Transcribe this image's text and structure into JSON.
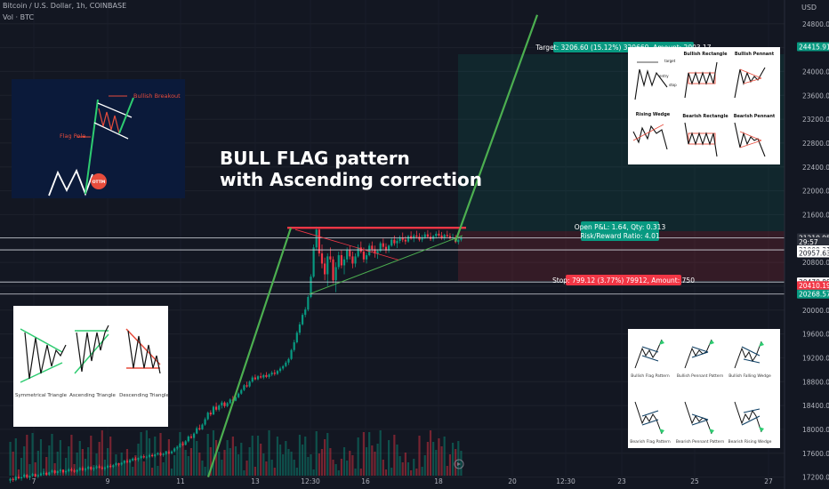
{
  "header": {
    "symbol_line": "Bitcoin / U.S. Dollar, 1h, COINBASE",
    "volume_line": "Vol · BTC",
    "currency": "USD"
  },
  "headline": {
    "line1": "BULL FLAG pattern",
    "line2": "with Ascending correction"
  },
  "trade": {
    "target_label": "Target: 3206.60 (15.12%) 320660, Amount: 2003.17",
    "position_line1": "Open P&L: 1.64, Qty: 0.313",
    "position_line2": "Risk/Reward Ratio: 4.01",
    "stop_label": "Stop: 799.12 (3.77%) 79912, Amount: 750"
  },
  "insets": {
    "flag": {
      "breakout": "Bullish Breakout",
      "pole": "Flag Pole",
      "logo": "OTTM"
    },
    "triangles": [
      "Symmetrical Triangle",
      "Ascending Triangle",
      "Descending Triangle"
    ],
    "rect_pennant": {
      "titles": [
        "Bullish Rectangle",
        "Bullish Pennant",
        "Rising Wedge",
        "Bearish Rectangle",
        "Bearish Pennant"
      ],
      "labels": [
        "target",
        "entry",
        "stop"
      ]
    },
    "flags_grid": [
      "Bullish Flag Pattern",
      "Bullish Pennant Pattern",
      "Bullish Falling Wedge",
      "Bearish Flag Pattern",
      "Bearish Pennant Pattern",
      "Bearish Rising Wedge"
    ]
  },
  "chart_data": {
    "type": "candlestick",
    "title": "Bitcoin / U.S. Dollar, 1h, COINBASE",
    "ylabel": "USD",
    "ylim": [
      17000,
      25050
    ],
    "y_ticks": [
      17200,
      17600,
      18000,
      18400,
      18800,
      19200,
      19600,
      20000,
      20400,
      20800,
      21200,
      21600,
      22000,
      22400,
      22800,
      23200,
      23600,
      24000,
      24400,
      24800
    ],
    "x_tick_labels": [
      "7",
      "9",
      "11",
      "13",
      "12:30",
      "16",
      "18",
      "20",
      "12:30",
      "23",
      "25",
      "27"
    ],
    "price_tags": [
      {
        "value": 24415.91,
        "label": "24415.91",
        "color": "#089981"
      },
      {
        "value": 21210.95,
        "label": "21210.95",
        "color": "#2a2e39"
      },
      {
        "value": 21145,
        "label": "29:57",
        "color": "#2a2e39"
      },
      {
        "value": 21009.31,
        "label": "21009.31",
        "color": "#ffffff"
      },
      {
        "value": 20957.63,
        "label": "20957.63",
        "color": "#ffffff"
      },
      {
        "value": 20470.88,
        "label": "20470.88",
        "color": "#ffffff"
      },
      {
        "value": 20410.19,
        "label": "20410.19",
        "color": "#f23645"
      },
      {
        "value": 20268.57,
        "label": "20268.57",
        "color": "#089981"
      }
    ],
    "horizontal_lines": [
      21210.95,
      21009.31,
      20470.88,
      20268.57
    ],
    "resistance": 21380,
    "flagpole_start": {
      "date": "11 late",
      "price": 17200
    },
    "flagpole_top": 21380,
    "projection_top": 24950,
    "trend_lines": [
      "flag resistance 21380",
      "ascending support from 20270 to 21250"
    ],
    "candles_ohlc": [
      [
        17140,
        17190,
        17100,
        17170
      ],
      [
        17170,
        17200,
        17120,
        17150
      ],
      [
        17150,
        17230,
        17130,
        17210
      ],
      [
        17210,
        17240,
        17160,
        17180
      ],
      [
        17180,
        17220,
        17140,
        17200
      ],
      [
        17200,
        17260,
        17180,
        17240
      ],
      [
        17240,
        17250,
        17170,
        17190
      ],
      [
        17190,
        17230,
        17150,
        17220
      ],
      [
        17220,
        17270,
        17200,
        17250
      ],
      [
        17250,
        17260,
        17190,
        17210
      ],
      [
        17210,
        17250,
        17180,
        17230
      ],
      [
        17230,
        17280,
        17210,
        17260
      ],
      [
        17260,
        17300,
        17230,
        17270
      ],
      [
        17270,
        17290,
        17220,
        17240
      ],
      [
        17240,
        17290,
        17220,
        17280
      ],
      [
        17280,
        17330,
        17260,
        17310
      ],
      [
        17310,
        17320,
        17250,
        17270
      ],
      [
        17270,
        17310,
        17240,
        17300
      ],
      [
        17300,
        17340,
        17270,
        17320
      ],
      [
        17320,
        17330,
        17260,
        17280
      ],
      [
        17280,
        17320,
        17250,
        17300
      ],
      [
        17300,
        17350,
        17280,
        17330
      ],
      [
        17330,
        17360,
        17290,
        17310
      ],
      [
        17310,
        17340,
        17270,
        17290
      ],
      [
        17290,
        17330,
        17260,
        17320
      ],
      [
        17320,
        17370,
        17300,
        17350
      ],
      [
        17350,
        17380,
        17300,
        17320
      ],
      [
        17320,
        17360,
        17290,
        17340
      ],
      [
        17340,
        17390,
        17320,
        17370
      ],
      [
        17370,
        17380,
        17310,
        17330
      ],
      [
        17330,
        17370,
        17300,
        17350
      ],
      [
        17350,
        17400,
        17330,
        17380
      ],
      [
        17380,
        17410,
        17340,
        17360
      ],
      [
        17360,
        17390,
        17320,
        17340
      ],
      [
        17340,
        17380,
        17310,
        17360
      ],
      [
        17360,
        17410,
        17340,
        17390
      ],
      [
        17390,
        17420,
        17350,
        17370
      ],
      [
        17370,
        17420,
        17350,
        17400
      ],
      [
        17400,
        17450,
        17380,
        17430
      ],
      [
        17430,
        17440,
        17380,
        17410
      ],
      [
        17410,
        17450,
        17390,
        17440
      ],
      [
        17440,
        17490,
        17420,
        17470
      ],
      [
        17470,
        17500,
        17430,
        17450
      ],
      [
        17450,
        17490,
        17430,
        17480
      ],
      [
        17480,
        17530,
        17460,
        17510
      ],
      [
        17510,
        17540,
        17470,
        17490
      ],
      [
        17490,
        17530,
        17460,
        17520
      ],
      [
        17520,
        17570,
        17500,
        17550
      ],
      [
        17550,
        17580,
        17510,
        17530
      ],
      [
        17530,
        17560,
        17500,
        17540
      ],
      [
        17540,
        17590,
        17520,
        17570
      ],
      [
        17570,
        17600,
        17530,
        17550
      ],
      [
        17550,
        17590,
        17530,
        17580
      ],
      [
        17580,
        17620,
        17560,
        17600
      ],
      [
        17600,
        17620,
        17550,
        17570
      ],
      [
        17570,
        17610,
        17540,
        17590
      ],
      [
        17590,
        17640,
        17570,
        17620
      ],
      [
        17620,
        17650,
        17580,
        17600
      ],
      [
        17600,
        17650,
        17580,
        17630
      ],
      [
        17630,
        17700,
        17610,
        17680
      ],
      [
        17680,
        17720,
        17650,
        17700
      ],
      [
        17700,
        17780,
        17690,
        17760
      ],
      [
        17760,
        17800,
        17720,
        17740
      ],
      [
        17740,
        17820,
        17730,
        17800
      ],
      [
        17800,
        17900,
        17780,
        17880
      ],
      [
        17880,
        17920,
        17840,
        17860
      ],
      [
        17860,
        17950,
        17850,
        17930
      ],
      [
        17930,
        18050,
        17920,
        18020
      ],
      [
        18020,
        18080,
        17980,
        18000
      ],
      [
        18000,
        18100,
        17990,
        18080
      ],
      [
        18080,
        18200,
        18060,
        18170
      ],
      [
        18170,
        18300,
        18150,
        18280
      ],
      [
        18280,
        18320,
        18220,
        18250
      ],
      [
        18250,
        18400,
        18240,
        18380
      ],
      [
        18380,
        18450,
        18300,
        18330
      ],
      [
        18330,
        18420,
        18300,
        18400
      ],
      [
        18400,
        18480,
        18350,
        18450
      ],
      [
        18450,
        18470,
        18360,
        18390
      ],
      [
        18390,
        18460,
        18370,
        18440
      ],
      [
        18440,
        18520,
        18420,
        18500
      ],
      [
        18500,
        18560,
        18460,
        18480
      ],
      [
        18480,
        18560,
        18470,
        18540
      ],
      [
        18540,
        18620,
        18520,
        18600
      ],
      [
        18600,
        18680,
        18580,
        18660
      ],
      [
        18660,
        18760,
        18640,
        18740
      ],
      [
        18740,
        18800,
        18700,
        18720
      ],
      [
        18720,
        18820,
        18700,
        18800
      ],
      [
        18800,
        18900,
        18780,
        18870
      ],
      [
        18870,
        18920,
        18820,
        18840
      ],
      [
        18840,
        18910,
        18820,
        18890
      ],
      [
        18890,
        18950,
        18850,
        18870
      ],
      [
        18870,
        18930,
        18840,
        18910
      ],
      [
        18910,
        18960,
        18860,
        18880
      ],
      [
        18880,
        18940,
        18850,
        18920
      ],
      [
        18920,
        18980,
        18890,
        18950
      ],
      [
        18950,
        19000,
        18900,
        18930
      ],
      [
        18930,
        19000,
        18910,
        18980
      ],
      [
        18980,
        19050,
        18950,
        19020
      ],
      [
        19020,
        19080,
        18990,
        19060
      ],
      [
        19060,
        19150,
        19040,
        19120
      ],
      [
        19120,
        19200,
        19080,
        19180
      ],
      [
        19180,
        19350,
        19160,
        19330
      ],
      [
        19330,
        19500,
        19300,
        19460
      ],
      [
        19460,
        19650,
        19440,
        19620
      ],
      [
        19620,
        19800,
        19580,
        19760
      ],
      [
        19760,
        19950,
        19740,
        19920
      ],
      [
        19920,
        20050,
        19880,
        20010
      ],
      [
        20010,
        20250,
        19980,
        20220
      ],
      [
        20220,
        20600,
        20200,
        20560
      ],
      [
        20560,
        21100,
        20540,
        21050
      ],
      [
        21050,
        21400,
        21000,
        21350
      ],
      [
        21350,
        21380,
        20900,
        20950
      ],
      [
        20950,
        21100,
        20700,
        20780
      ],
      [
        20780,
        20880,
        20500,
        20600
      ],
      [
        20600,
        20950,
        20400,
        20900
      ],
      [
        20900,
        21050,
        20800,
        20850
      ],
      [
        20850,
        20900,
        20450,
        20500
      ],
      [
        20500,
        20800,
        20300,
        20720
      ],
      [
        20720,
        20980,
        20680,
        20920
      ],
      [
        20920,
        21000,
        20700,
        20750
      ],
      [
        20750,
        20900,
        20600,
        20850
      ],
      [
        20850,
        21050,
        20800,
        21000
      ],
      [
        21000,
        21080,
        20850,
        20900
      ],
      [
        20900,
        20980,
        20700,
        20780
      ],
      [
        20780,
        20950,
        20720,
        20900
      ],
      [
        20900,
        21100,
        20880,
        21050
      ],
      [
        21050,
        21150,
        20950,
        20980
      ],
      [
        20980,
        21050,
        20800,
        20850
      ],
      [
        20850,
        20960,
        20780,
        20920
      ],
      [
        20920,
        21120,
        20900,
        21080
      ],
      [
        21080,
        21150,
        20980,
        21020
      ],
      [
        21020,
        21080,
        20880,
        20950
      ],
      [
        20950,
        21020,
        20860,
        20990
      ],
      [
        20990,
        21150,
        20970,
        21120
      ],
      [
        21120,
        21200,
        21020,
        21060
      ],
      [
        21060,
        21120,
        20950,
        21000
      ],
      [
        21000,
        21100,
        20960,
        21080
      ],
      [
        21080,
        21220,
        21060,
        21180
      ],
      [
        21180,
        21250,
        21080,
        21120
      ],
      [
        21120,
        21200,
        21040,
        21160
      ],
      [
        21160,
        21250,
        21120,
        21220
      ],
      [
        21220,
        21300,
        21140,
        21180
      ],
      [
        21180,
        21240,
        21100,
        21150
      ],
      [
        21150,
        21260,
        21130,
        21240
      ],
      [
        21240,
        21320,
        21180,
        21200
      ],
      [
        21200,
        21280,
        21140,
        21250
      ],
      [
        21250,
        21330,
        21200,
        21230
      ],
      [
        21230,
        21290,
        21150,
        21180
      ],
      [
        21180,
        21260,
        21140,
        21220
      ],
      [
        21220,
        21310,
        21190,
        21270
      ],
      [
        21270,
        21340,
        21200,
        21230
      ],
      [
        21230,
        21300,
        21160,
        21190
      ],
      [
        21190,
        21260,
        21150,
        21240
      ],
      [
        21240,
        21320,
        21200,
        21280
      ],
      [
        21280,
        21340,
        21220,
        21250
      ],
      [
        21250,
        21310,
        21180,
        21210
      ],
      [
        21210,
        21280,
        21170,
        21260
      ],
      [
        21260,
        21330,
        21220,
        21240
      ],
      [
        21240,
        21290,
        21180,
        21210
      ],
      [
        21210,
        21280,
        21170,
        21220
      ],
      [
        21220,
        21260,
        21120,
        21140
      ],
      [
        21140,
        21200,
        21100,
        21180
      ],
      [
        21180,
        21240,
        21150,
        21210
      ]
    ]
  }
}
